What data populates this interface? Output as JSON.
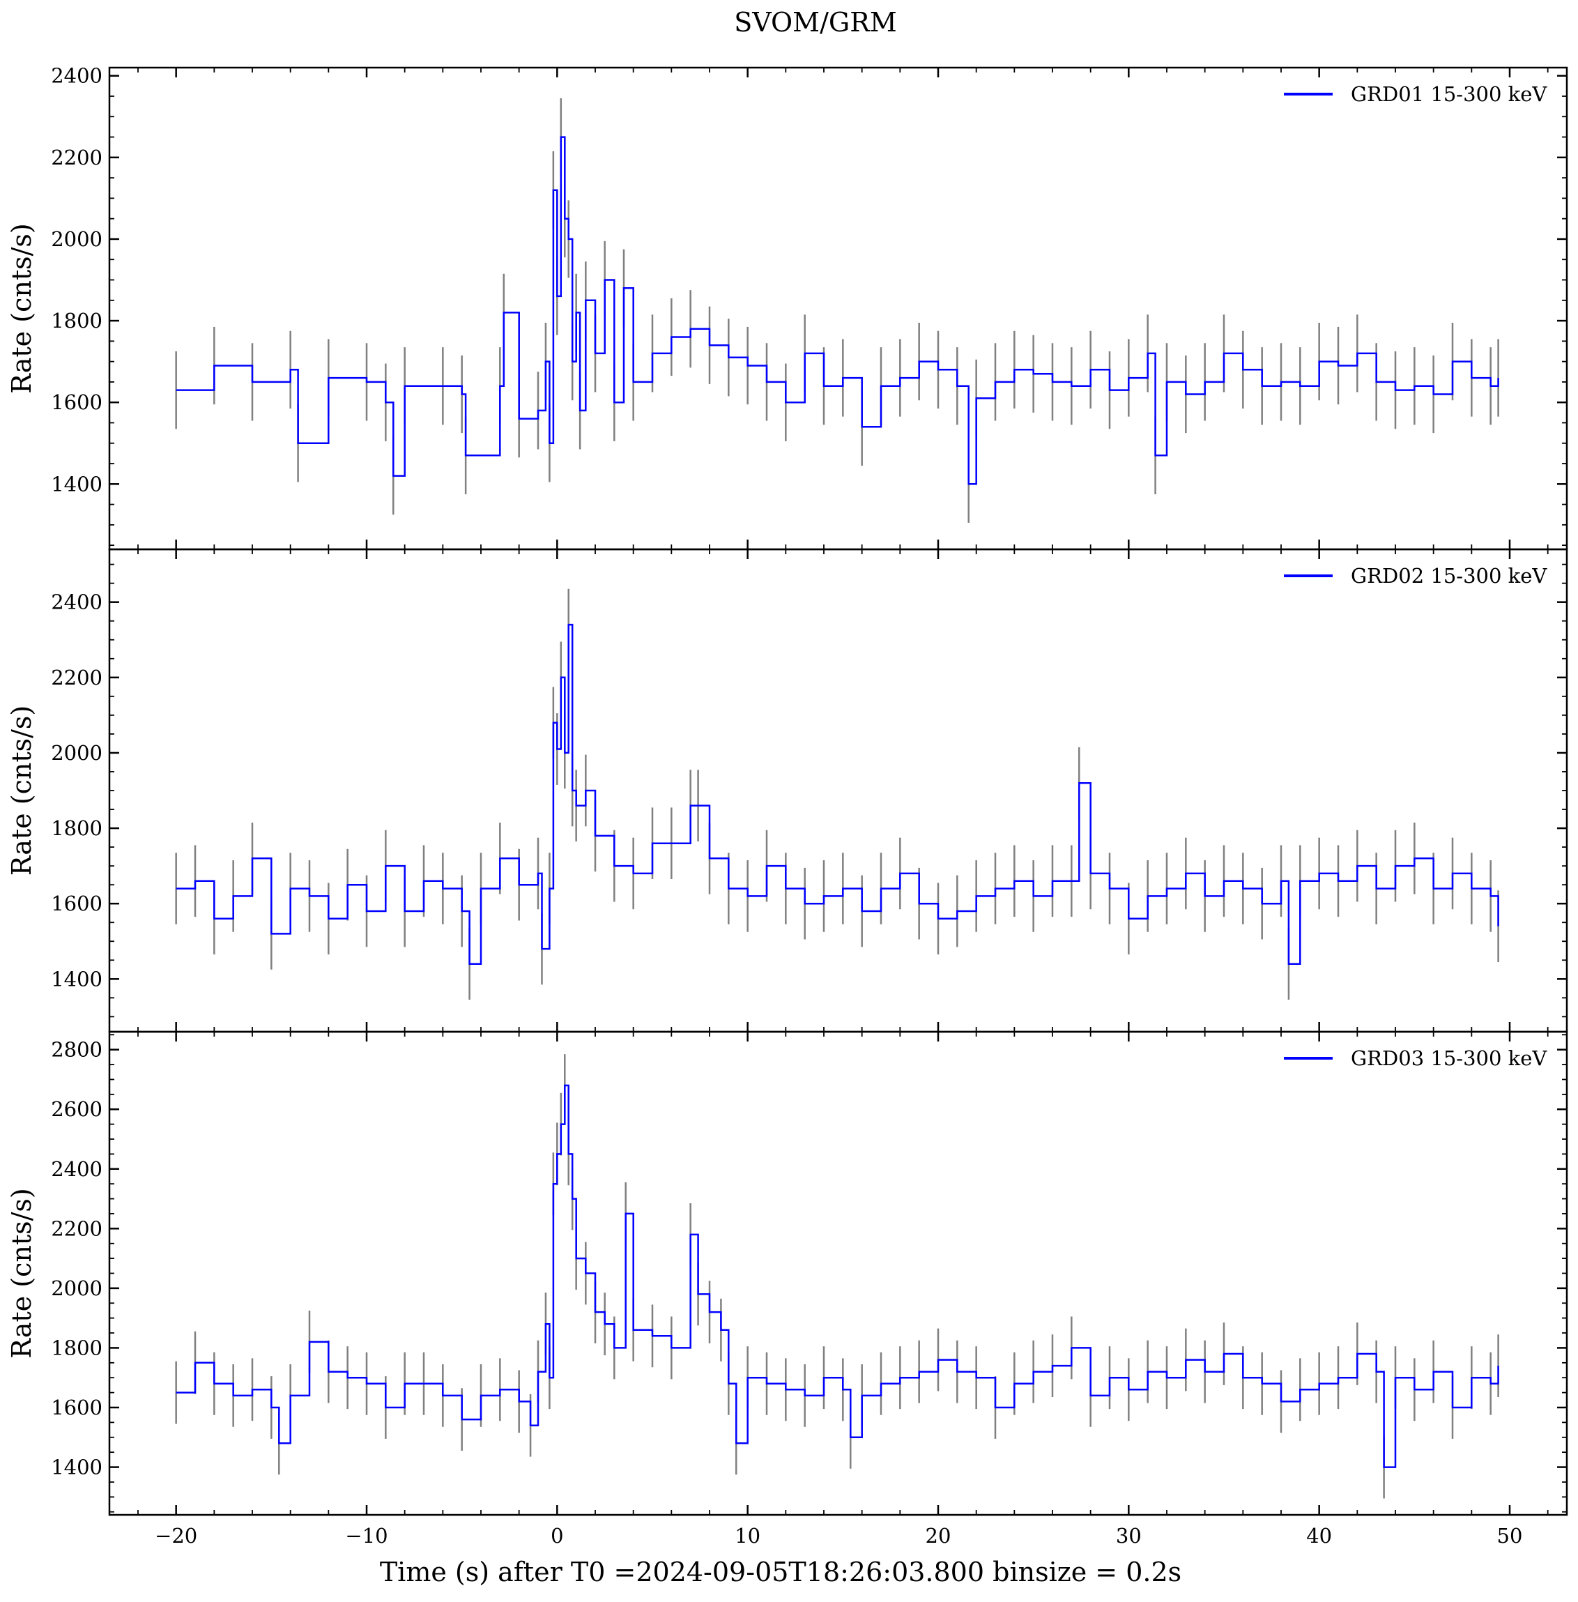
{
  "figure": {
    "title": "SVOM/GRM",
    "xlabel": "Time (s) after T0 =2024-09-05T18:26:03.800 binsize = 0.2s"
  },
  "colors": {
    "line": "#0000ff",
    "errorbar": "#808080",
    "axes": "#000000",
    "background": "#ffffff"
  },
  "chart_data": [
    {
      "type": "line",
      "panel": "top",
      "ylabel": "Rate (cnts/s)",
      "xlim": [
        -23.5,
        53
      ],
      "ylim": [
        1240,
        2420
      ],
      "xticks": [
        -20,
        -10,
        0,
        10,
        20,
        30,
        40,
        50
      ],
      "xtick_labels": [
        "−20",
        "−10",
        "0",
        "10",
        "20",
        "30",
        "40",
        "50"
      ],
      "yticks": [
        1400,
        1600,
        1800,
        2000,
        2200,
        2400
      ],
      "ytick_labels": [
        "1400",
        "1600",
        "1800",
        "2000",
        "2200",
        "2400"
      ],
      "legend_position": "top-right",
      "series": [
        {
          "name": "GRD01 15-300 keV",
          "error": 95,
          "x": [
            -20,
            -18,
            -16,
            -14,
            -13.6,
            -12,
            -10,
            -9,
            -8.6,
            -8,
            -6,
            -5,
            -4.8,
            -3,
            -2.8,
            -2,
            -1,
            -0.6,
            -0.4,
            -0.2,
            0,
            0.2,
            0.4,
            0.6,
            0.8,
            1,
            1.2,
            1.5,
            2,
            2.5,
            3,
            3.5,
            4,
            5,
            6,
            7,
            8,
            9,
            10,
            11,
            12,
            13,
            14,
            15,
            16,
            17,
            18,
            19,
            20,
            21,
            21.6,
            22,
            23,
            24,
            25,
            26,
            27,
            28,
            29,
            30,
            31,
            31.4,
            32,
            33,
            34,
            35,
            36,
            37,
            38,
            39,
            40,
            41,
            42,
            43,
            44,
            45,
            46,
            47,
            48,
            49,
            49.4
          ],
          "values": [
            1630,
            1690,
            1650,
            1680,
            1500,
            1660,
            1650,
            1600,
            1420,
            1640,
            1640,
            1620,
            1470,
            1640,
            1820,
            1560,
            1580,
            1700,
            1500,
            2120,
            1860,
            2250,
            2050,
            2000,
            1700,
            1820,
            1580,
            1850,
            1720,
            1900,
            1600,
            1880,
            1650,
            1720,
            1760,
            1780,
            1740,
            1710,
            1690,
            1650,
            1600,
            1720,
            1640,
            1660,
            1540,
            1640,
            1660,
            1700,
            1680,
            1640,
            1400,
            1610,
            1650,
            1680,
            1670,
            1650,
            1640,
            1680,
            1630,
            1660,
            1720,
            1470,
            1650,
            1620,
            1650,
            1720,
            1680,
            1640,
            1650,
            1640,
            1700,
            1690,
            1720,
            1650,
            1630,
            1640,
            1620,
            1700,
            1660,
            1640,
            1660
          ]
        }
      ]
    },
    {
      "type": "line",
      "panel": "middle",
      "ylabel": "Rate (cnts/s)",
      "xlim": [
        -23.5,
        53
      ],
      "ylim": [
        1260,
        2540
      ],
      "xticks": [
        -20,
        -10,
        0,
        10,
        20,
        30,
        40,
        50
      ],
      "xtick_labels": [
        "−20",
        "−10",
        "0",
        "10",
        "20",
        "30",
        "40",
        "50"
      ],
      "yticks": [
        1400,
        1600,
        1800,
        2000,
        2200,
        2400
      ],
      "ytick_labels": [
        "1400",
        "1600",
        "1800",
        "2000",
        "2200",
        "2400"
      ],
      "legend_position": "top-right",
      "series": [
        {
          "name": "GRD02 15-300 keV",
          "error": 95,
          "x": [
            -20,
            -19,
            -18,
            -17,
            -16,
            -15,
            -14,
            -13,
            -12,
            -11,
            -10,
            -9,
            -8,
            -7,
            -6,
            -5,
            -4.6,
            -4,
            -3,
            -2,
            -1,
            -0.8,
            -0.4,
            -0.2,
            0,
            0.2,
            0.4,
            0.6,
            0.8,
            1,
            1.5,
            2,
            3,
            4,
            5,
            6,
            7,
            7.4,
            8,
            9,
            10,
            11,
            12,
            13,
            14,
            15,
            16,
            17,
            18,
            19,
            20,
            21,
            22,
            23,
            24,
            25,
            26,
            27,
            27.4,
            28,
            29,
            30,
            31,
            32,
            33,
            34,
            35,
            36,
            37,
            38,
            38.4,
            39,
            40,
            41,
            42,
            43,
            44,
            45,
            46,
            47,
            48,
            49,
            49.4
          ],
          "values": [
            1640,
            1660,
            1560,
            1620,
            1720,
            1520,
            1640,
            1620,
            1560,
            1650,
            1580,
            1700,
            1580,
            1660,
            1640,
            1580,
            1440,
            1640,
            1720,
            1650,
            1680,
            1480,
            1640,
            2080,
            2010,
            2200,
            2000,
            2340,
            1900,
            1860,
            1900,
            1780,
            1700,
            1680,
            1760,
            1760,
            1860,
            1860,
            1720,
            1640,
            1620,
            1700,
            1640,
            1600,
            1620,
            1640,
            1580,
            1640,
            1680,
            1600,
            1560,
            1580,
            1620,
            1640,
            1660,
            1620,
            1660,
            1660,
            1920,
            1680,
            1640,
            1560,
            1620,
            1640,
            1680,
            1620,
            1660,
            1640,
            1600,
            1660,
            1440,
            1660,
            1680,
            1660,
            1700,
            1640,
            1700,
            1720,
            1640,
            1680,
            1640,
            1620,
            1540
          ]
        }
      ]
    },
    {
      "type": "line",
      "panel": "bottom",
      "ylabel": "Rate (cnts/s)",
      "xlim": [
        -23.5,
        53
      ],
      "ylim": [
        1240,
        2860
      ],
      "xticks": [
        -20,
        -10,
        0,
        10,
        20,
        30,
        40,
        50
      ],
      "xtick_labels": [
        "−20",
        "−10",
        "0",
        "10",
        "20",
        "30",
        "40",
        "50"
      ],
      "yticks": [
        1400,
        1600,
        1800,
        2000,
        2200,
        2400,
        2600,
        2800
      ],
      "ytick_labels": [
        "1400",
        "1600",
        "1800",
        "2000",
        "2200",
        "2400",
        "2600",
        "2800"
      ],
      "legend_position": "top-right",
      "series": [
        {
          "name": "GRD03 15-300 keV",
          "error": 105,
          "x": [
            -20,
            -19,
            -18,
            -17,
            -16,
            -15,
            -14.6,
            -14,
            -13,
            -12,
            -11,
            -10,
            -9,
            -8,
            -7,
            -6,
            -5,
            -4,
            -3,
            -2,
            -1.4,
            -1,
            -0.6,
            -0.4,
            -0.2,
            0,
            0.2,
            0.4,
            0.6,
            0.8,
            1,
            1.5,
            2,
            2.5,
            3,
            3.6,
            4,
            5,
            6,
            7,
            7.4,
            8,
            8.6,
            9,
            9.4,
            10,
            11,
            12,
            13,
            14,
            15,
            15.4,
            16,
            17,
            18,
            19,
            20,
            21,
            22,
            23,
            24,
            25,
            26,
            27,
            28,
            29,
            30,
            31,
            32,
            33,
            34,
            35,
            36,
            37,
            38,
            39,
            40,
            41,
            42,
            43,
            43.4,
            44,
            45,
            46,
            47,
            48,
            49,
            49.4
          ],
          "values": [
            1650,
            1750,
            1680,
            1640,
            1660,
            1600,
            1480,
            1640,
            1820,
            1720,
            1700,
            1680,
            1600,
            1680,
            1680,
            1640,
            1560,
            1640,
            1660,
            1620,
            1540,
            1720,
            1880,
            1700,
            2350,
            2450,
            2550,
            2680,
            2450,
            2300,
            2100,
            2050,
            1920,
            1880,
            1800,
            2250,
            1860,
            1840,
            1800,
            2180,
            1980,
            1920,
            1860,
            1680,
            1480,
            1700,
            1680,
            1660,
            1640,
            1700,
            1660,
            1500,
            1640,
            1680,
            1700,
            1720,
            1760,
            1720,
            1700,
            1600,
            1680,
            1720,
            1740,
            1800,
            1640,
            1700,
            1660,
            1720,
            1700,
            1760,
            1720,
            1780,
            1700,
            1680,
            1620,
            1660,
            1680,
            1700,
            1780,
            1720,
            1400,
            1700,
            1660,
            1720,
            1600,
            1700,
            1680,
            1740
          ]
        }
      ]
    }
  ]
}
